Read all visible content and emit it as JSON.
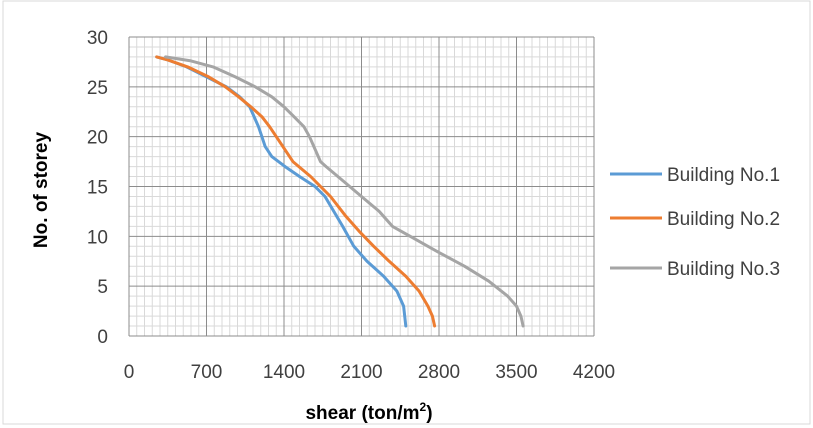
{
  "chart_data": {
    "type": "line",
    "title": "",
    "xlabel": "shear (ton/m",
    "xlabel_sup": "2",
    "xlabel_end": ")",
    "ylabel": "No. of storey",
    "xlim": [
      0,
      4200
    ],
    "ylim": [
      0,
      30
    ],
    "x_ticks": [
      "0",
      "700",
      "1400",
      "2100",
      "2800",
      "3500",
      "4200"
    ],
    "y_ticks": [
      "0",
      "5",
      "10",
      "15",
      "20",
      "25",
      "30"
    ],
    "grid": true,
    "legend_position": "right",
    "series": [
      {
        "name": "Building No.1",
        "color": "#5B9BD5",
        "points": [
          [
            2500,
            1
          ],
          [
            2480,
            3
          ],
          [
            2420,
            4.5
          ],
          [
            2300,
            6
          ],
          [
            2150,
            7.5
          ],
          [
            2030,
            9
          ],
          [
            1930,
            11
          ],
          [
            1850,
            12.5
          ],
          [
            1770,
            14
          ],
          [
            1680,
            15
          ],
          [
            1540,
            16
          ],
          [
            1410,
            17
          ],
          [
            1290,
            18
          ],
          [
            1230,
            19
          ],
          [
            1200,
            20
          ],
          [
            1170,
            21
          ],
          [
            1130,
            22
          ],
          [
            1090,
            23
          ],
          [
            1000,
            24
          ],
          [
            880,
            25
          ],
          [
            700,
            26
          ],
          [
            520,
            27
          ],
          [
            350,
            27.7
          ],
          [
            250,
            28
          ]
        ]
      },
      {
        "name": "Building No.2",
        "color": "#ED7D31",
        "points": [
          [
            2760,
            1
          ],
          [
            2740,
            2
          ],
          [
            2700,
            3
          ],
          [
            2620,
            4.5
          ],
          [
            2500,
            6
          ],
          [
            2350,
            7.5
          ],
          [
            2210,
            9
          ],
          [
            2080,
            10.5
          ],
          [
            1960,
            12
          ],
          [
            1820,
            14
          ],
          [
            1640,
            16
          ],
          [
            1480,
            17.5
          ],
          [
            1390,
            19
          ],
          [
            1330,
            20
          ],
          [
            1270,
            21
          ],
          [
            1200,
            22
          ],
          [
            1100,
            23
          ],
          [
            990,
            24
          ],
          [
            870,
            25
          ],
          [
            720,
            26
          ],
          [
            530,
            27
          ],
          [
            350,
            27.7
          ],
          [
            250,
            28
          ]
        ]
      },
      {
        "name": "Building No.3",
        "color": "#A5A5A5",
        "points": [
          [
            3560,
            1
          ],
          [
            3540,
            2
          ],
          [
            3500,
            3
          ],
          [
            3420,
            4
          ],
          [
            3250,
            5.5
          ],
          [
            3030,
            7
          ],
          [
            2780,
            8.5
          ],
          [
            2540,
            10
          ],
          [
            2380,
            11
          ],
          [
            2260,
            12.5
          ],
          [
            2100,
            14
          ],
          [
            1940,
            15.5
          ],
          [
            1780,
            17
          ],
          [
            1730,
            17.5
          ],
          [
            1670,
            19
          ],
          [
            1630,
            20
          ],
          [
            1580,
            21
          ],
          [
            1490,
            22
          ],
          [
            1400,
            23
          ],
          [
            1290,
            24
          ],
          [
            1140,
            25
          ],
          [
            960,
            26
          ],
          [
            760,
            27
          ],
          [
            560,
            27.6
          ],
          [
            330,
            28
          ]
        ]
      }
    ]
  }
}
